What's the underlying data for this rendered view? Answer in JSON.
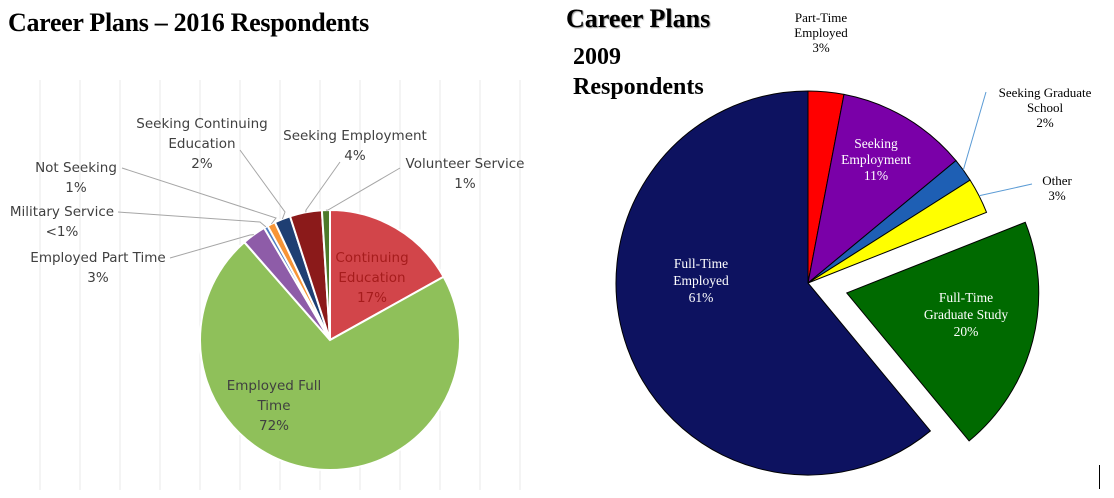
{
  "titles": {
    "left": "Career Plans – 2016 Respondents",
    "right_line1": "Career Plans",
    "right_line2": "2009 Respondents"
  },
  "chart_data": [
    {
      "type": "pie",
      "title": "Career Plans – 2016 Respondents",
      "slices": [
        {
          "label": "Continuing Education",
          "value": 17,
          "value_text": "17%",
          "color": "#d2454a"
        },
        {
          "label": "Employed Full Time",
          "value": 72,
          "value_text": "72%",
          "color": "#8fc05a"
        },
        {
          "label": "Employed Part Time",
          "value": 3,
          "value_text": "3%",
          "color": "#8e5ca8"
        },
        {
          "label": "Military Service",
          "value": 0.5,
          "value_text": "<1%",
          "color": "#4f7dc0"
        },
        {
          "label": "Not Seeking",
          "value": 1,
          "value_text": "1%",
          "color": "#f79537"
        },
        {
          "label": "Seeking Continuing Education",
          "value": 2,
          "value_text": "2%",
          "color": "#1f3f73"
        },
        {
          "label": "Seeking Employment",
          "value": 4,
          "value_text": "4%",
          "color": "#8b1a1a"
        },
        {
          "label": "Volunteer Service",
          "value": 1,
          "value_text": "1%",
          "color": "#4d7a2a"
        }
      ]
    },
    {
      "type": "pie",
      "title": "Career Plans 2009 Respondents",
      "slices": [
        {
          "label": "Part-Time Employed",
          "value": 3,
          "value_text": "3%",
          "color": "#ff0000"
        },
        {
          "label": "Seeking Employment",
          "value": 11,
          "value_text": "11%",
          "color": "#7a00a8"
        },
        {
          "label": "Seeking Graduate School",
          "value": 2,
          "value_text": "2%",
          "color": "#1e5fb4"
        },
        {
          "label": "Other",
          "value": 3,
          "value_text": "3%",
          "color": "#ffff00"
        },
        {
          "label": "Full-Time Graduate Study",
          "value": 20,
          "value_text": "20%",
          "color": "#006a00",
          "exploded": true
        },
        {
          "label": "Full-Time Employed",
          "value": 61,
          "value_text": "61%",
          "color": "#0d1260"
        }
      ]
    }
  ]
}
